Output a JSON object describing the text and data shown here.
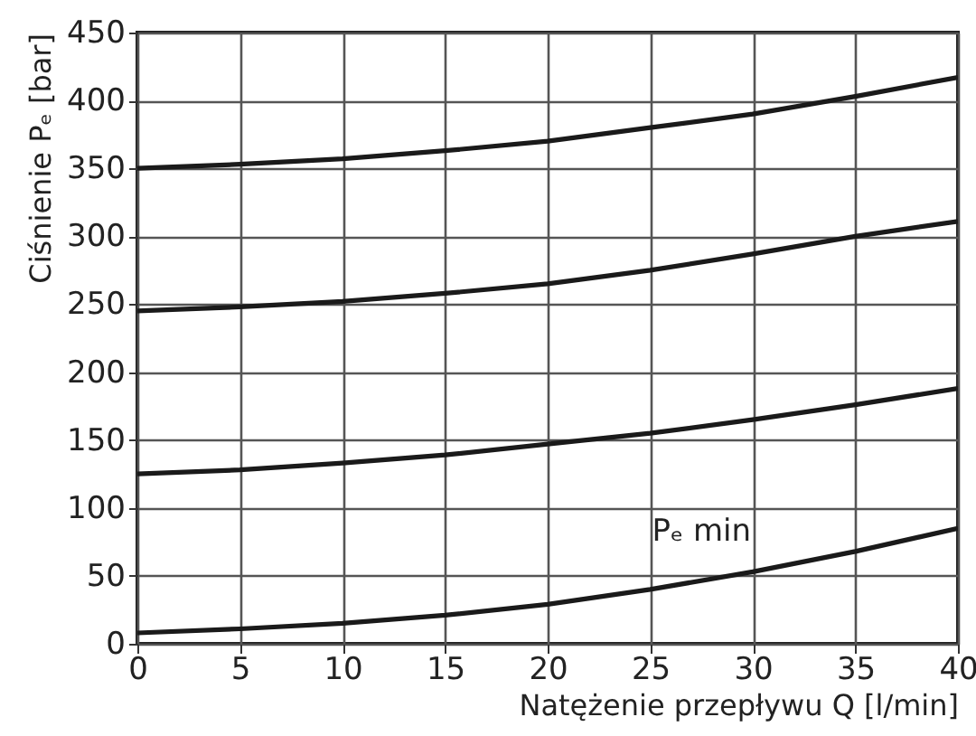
{
  "chart_data": {
    "type": "line",
    "xlabel": "Natężenie przepływu Q [l/min]",
    "ylabel": "Ciśnienie Pₑ [bar]",
    "x": [
      0,
      5,
      10,
      15,
      20,
      25,
      30,
      35,
      40
    ],
    "series": [
      {
        "color": "#1a1a1a",
        "values": [
          350,
          353,
          357,
          363,
          370,
          380,
          390,
          403,
          417
        ]
      },
      {
        "color": "#1a1a1a",
        "values": [
          245,
          248,
          252,
          258,
          265,
          275,
          287,
          300,
          311
        ]
      },
      {
        "color": "#1a1a1a",
        "values": [
          125,
          128,
          133,
          139,
          147,
          155,
          165,
          176,
          188
        ]
      },
      {
        "color": "#1a1a1a",
        "values": [
          8,
          11,
          15,
          21,
          29,
          40,
          53,
          68,
          85
        ]
      }
    ],
    "annotations": [
      {
        "text": "Pₑ min",
        "x": 29,
        "y": 53
      }
    ],
    "xlim": [
      0,
      40
    ],
    "xticks": [
      0,
      5,
      10,
      15,
      20,
      25,
      30,
      35,
      40
    ],
    "ylim": [
      0,
      450
    ],
    "yticks": [
      0,
      50,
      100,
      150,
      200,
      250,
      300,
      350,
      400,
      450
    ],
    "grid": true,
    "marker": "none",
    "line_style": "solid"
  }
}
